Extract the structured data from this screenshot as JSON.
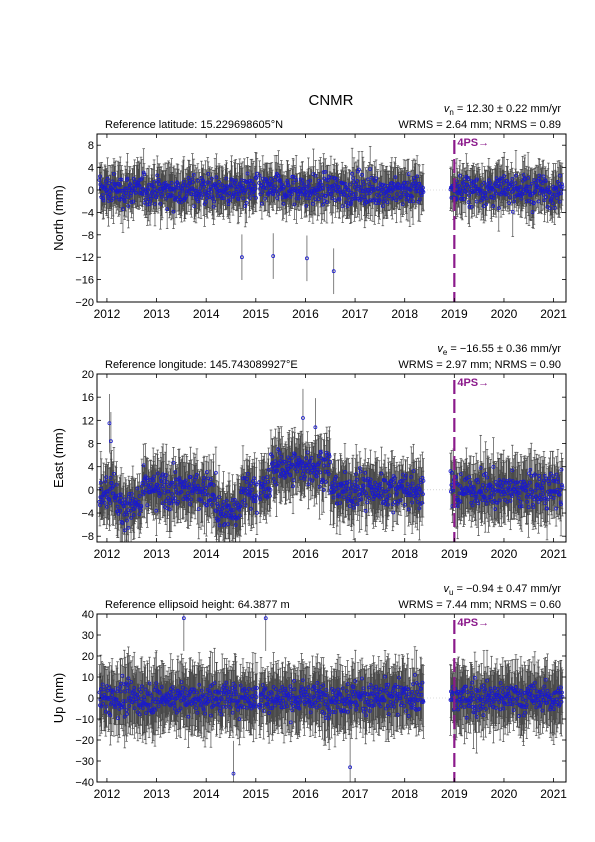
{
  "title": "CNMR",
  "colors": {
    "points": "#1a1acc",
    "errorbars": "#4a4a4a",
    "offset_line": "#8b1a8b",
    "zero_line": "#bbbbbb"
  },
  "offset_label": "4PS→",
  "chart_data": [
    {
      "type": "scatter",
      "component": "north",
      "ylabel": "North (mm)",
      "ref_text": "Reference latitude: 15.229698605°N",
      "rate_symbol": "v",
      "rate_subscript": "n",
      "rate_value": " = 12.30 ± 0.22 mm/yr",
      "stats_text": "WRMS = 2.64 mm; NRMS = 0.89",
      "xlim": [
        2011.8,
        2021.25
      ],
      "ylim": [
        -20,
        10
      ],
      "yticks": [
        -20,
        -16,
        -12,
        -8,
        -4,
        0,
        4,
        8
      ],
      "ytick_labels": [
        "−20",
        "−16",
        "−12",
        "−8",
        "−4",
        "0",
        "4",
        "8"
      ],
      "xticks": [
        2012,
        2013,
        2014,
        2015,
        2016,
        2017,
        2018,
        2019,
        2020,
        2021
      ],
      "xtick_labels": [
        "2012",
        "2013",
        "2014",
        "2015",
        "2016",
        "2017",
        "2018",
        "2019",
        "2020",
        "2021"
      ],
      "offset_epoch": 2019.0,
      "gap": [
        2018.38,
        2018.92
      ],
      "scatter_sd": 2.7,
      "errorbar_half": 3.4,
      "outliers": [
        [
          2016.03,
          -12.2
        ],
        [
          2016.57,
          -14.5
        ],
        [
          2014.72,
          -12.0
        ],
        [
          2015.35,
          -11.8
        ]
      ]
    },
    {
      "type": "scatter",
      "component": "east",
      "ylabel": "East (mm)",
      "ref_text": "Reference longitude: 145.743089927°E",
      "rate_symbol": "v",
      "rate_subscript": "e",
      "rate_value": " = −16.55 ± 0.36 mm/yr",
      "stats_text": "WRMS = 2.97 mm; NRMS = 0.90",
      "xlim": [
        2011.8,
        2021.25
      ],
      "ylim": [
        -9,
        20
      ],
      "yticks": [
        -8,
        -4,
        0,
        4,
        8,
        12,
        16,
        20
      ],
      "ytick_labels": [
        "−8",
        "−4",
        "0",
        "4",
        "8",
        "12",
        "16",
        "20"
      ],
      "xticks": [
        2012,
        2013,
        2014,
        2015,
        2016,
        2017,
        2018,
        2019,
        2020,
        2021
      ],
      "xtick_labels": [
        "2012",
        "2013",
        "2014",
        "2015",
        "2016",
        "2017",
        "2018",
        "2019",
        "2020",
        "2021"
      ],
      "offset_epoch": 2019.0,
      "gap": [
        2018.38,
        2018.92
      ],
      "scatter_sd": 3.0,
      "errorbar_half": 4.2,
      "outliers": [
        [
          2012.05,
          11.5
        ],
        [
          2012.08,
          8.4
        ],
        [
          2015.95,
          12.4
        ],
        [
          2016.2,
          10.8
        ]
      ]
    },
    {
      "type": "scatter",
      "component": "up",
      "ylabel": "Up (mm)",
      "ref_text": "Reference ellipsoid height: 64.3877 m",
      "rate_symbol": "v",
      "rate_subscript": "u",
      "rate_value": " = −0.94 ± 0.47 mm/yr",
      "stats_text": "WRMS = 7.44 mm; NRMS = 0.60",
      "xlim": [
        2011.8,
        2021.25
      ],
      "ylim": [
        -40,
        40
      ],
      "yticks": [
        -40,
        -30,
        -20,
        -10,
        0,
        10,
        20,
        30,
        40
      ],
      "ytick_labels": [
        "−40",
        "−30",
        "−20",
        "−10",
        "0",
        "10",
        "20",
        "30",
        "40"
      ],
      "xticks": [
        2012,
        2013,
        2014,
        2015,
        2016,
        2017,
        2018,
        2019,
        2020,
        2021
      ],
      "xtick_labels": [
        "2012",
        "2013",
        "2014",
        "2015",
        "2016",
        "2017",
        "2018",
        "2019",
        "2020",
        "2021"
      ],
      "offset_epoch": 2019.0,
      "gap": [
        2018.38,
        2018.92
      ],
      "scatter_sd": 7.4,
      "errorbar_half": 13.0,
      "outliers": [
        [
          2013.55,
          38.0
        ],
        [
          2015.2,
          38.0
        ],
        [
          2014.55,
          -36.0
        ],
        [
          2016.9,
          -33.0
        ]
      ]
    }
  ]
}
